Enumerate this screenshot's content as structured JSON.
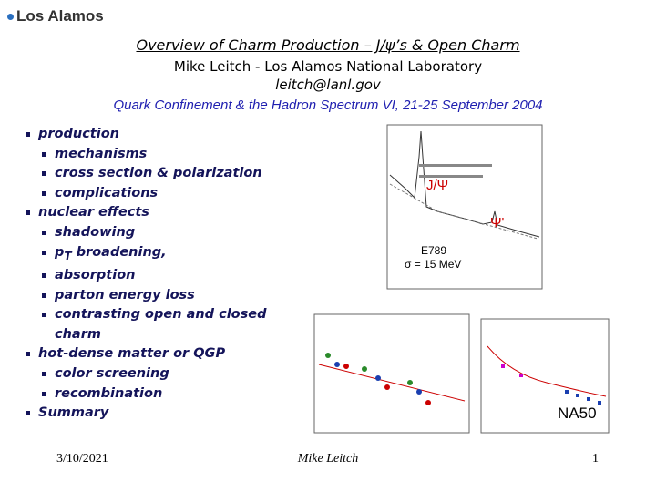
{
  "header": {
    "logo": "Los Alamos",
    "title": "Overview of Charm Production – J/ψ’s & Open Charm",
    "author": "Mike Leitch - Los Alamos National Laboratory",
    "email": "leitch@lanl.gov",
    "conference": "Quark Confinement & the Hadron Spectrum VI, 21-25 September 2004"
  },
  "bullets": [
    {
      "text": "production",
      "items": [
        {
          "text": "mechanisms"
        },
        {
          "text": "cross section & polarization"
        },
        {
          "text": "complications"
        }
      ]
    },
    {
      "text": "nuclear effects",
      "items": [
        {
          "text": "shadowing"
        },
        {
          "text": "p",
          "sub": "T",
          "rest": " broadening,"
        },
        {
          "text": "absorption"
        },
        {
          "text": "parton energy loss"
        },
        {
          "text": "contrasting open and closed charm"
        }
      ]
    },
    {
      "text": "hot-dense matter or QGP",
      "items": [
        {
          "text": "color screening"
        },
        {
          "text": "recombination"
        }
      ]
    },
    {
      "text": "Summary",
      "items": []
    }
  ],
  "figures": {
    "jpsi_label": "J/Ψ",
    "psiprime_label": "Ψ'",
    "experiment": "E789",
    "resolution": "σ = 15 MeV",
    "na50_label": "NA50"
  },
  "footer": {
    "date": "3/10/2021",
    "author": "Mike Leitch",
    "page": "1"
  }
}
